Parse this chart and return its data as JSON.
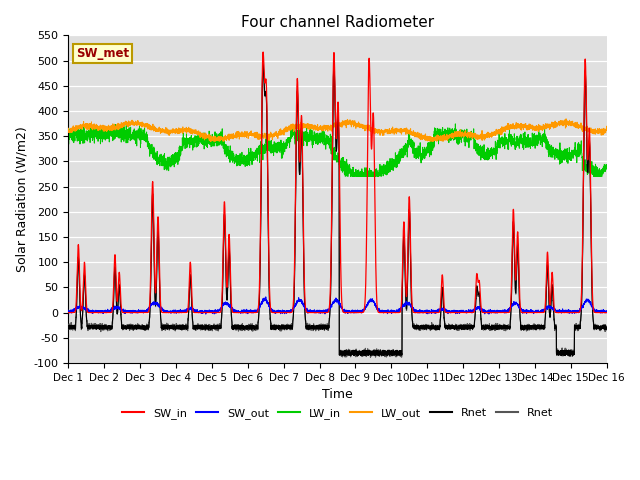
{
  "title": "Four channel Radiometer",
  "xlabel": "Time",
  "ylabel": "Solar Radiation (W/m2)",
  "ylim": [
    -100,
    550
  ],
  "xlim": [
    0,
    15
  ],
  "xtick_labels": [
    "Dec 1",
    "Dec 2",
    "Dec 3",
    "Dec 4",
    "Dec 5",
    "Dec 6",
    "Dec 7",
    "Dec 8",
    "Dec 9",
    "Dec 10",
    "Dec 11",
    "Dec 12",
    "Dec 13",
    "Dec 14",
    "Dec 15",
    "Dec 16"
  ],
  "ytick_values": [
    -100,
    -50,
    0,
    50,
    100,
    150,
    200,
    250,
    300,
    350,
    400,
    450,
    500,
    550
  ],
  "colors": {
    "SW_in": "#ff0000",
    "SW_out": "#0000ff",
    "LW_in": "#00cc00",
    "LW_out": "#ff9900",
    "Rnet_black": "#000000",
    "Rnet_dark": "#555555"
  },
  "bg_color": "#e0e0e0",
  "annotation_text": "SW_met",
  "annotation_color": "#990000",
  "annotation_bg": "#ffffcc",
  "annotation_border": "#bb9900"
}
